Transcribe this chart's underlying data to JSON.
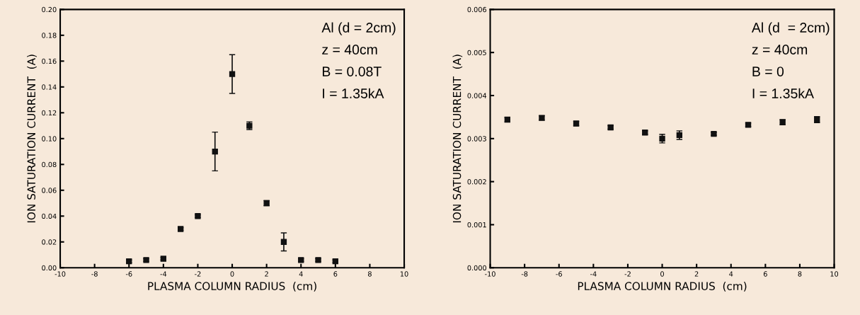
{
  "chart_data": [
    {
      "type": "scatter",
      "xlabel": "PLASMA COLUMN RADIUS  (cm)",
      "ylabel": "ION SATURATION CURRENT  (A)",
      "marker": "square",
      "x": [
        -6,
        -5,
        -4,
        -3,
        -2,
        -1,
        0,
        1,
        2,
        3,
        4,
        5,
        6
      ],
      "series": [
        {
          "color": "#111111",
          "values": [
            0.005,
            0.006,
            0.007,
            0.03,
            0.04,
            0.09,
            0.15,
            0.11,
            0.05,
            0.02,
            0.006,
            0.006,
            0.005
          ],
          "errors": [
            0.001,
            0.001,
            0.001,
            0.001,
            0.001,
            0.015,
            0.015,
            0.003,
            0.002,
            0.007,
            0.001,
            0.001,
            0.001
          ]
        }
      ],
      "xlim": [
        -10,
        10
      ],
      "xticks": [
        -10,
        -8,
        -6,
        -4,
        -2,
        0,
        2,
        4,
        6,
        8,
        10
      ],
      "ylim": [
        0,
        0.2
      ],
      "yticks": [
        {
          "value": 0,
          "label": "0.00"
        },
        0.02,
        0.04,
        0.06,
        0.08,
        {
          "value": 0.1,
          "label": "0.10"
        },
        0.12,
        0.14,
        0.16,
        0.18,
        {
          "value": 0.2,
          "label": "0.20"
        }
      ],
      "annotations": [
        "Al (d = 2cm)",
        "z = 40cm",
        "B = 0.08T",
        "I = 1.35kA"
      ]
    },
    {
      "type": "scatter",
      "xlabel": "PLASMA COLUMN RADIUS  (cm)",
      "ylabel": "ION SATURATION CURRENT  (A)",
      "marker": "square",
      "x": [
        -9,
        -7,
        -5,
        -3,
        -1,
        0,
        1,
        3,
        5,
        7,
        9
      ],
      "series": [
        {
          "color": "#111111",
          "values": [
            0.00344,
            0.00348,
            0.00335,
            0.00326,
            0.00314,
            0.003,
            0.00308,
            0.00311,
            0.00332,
            0.00338,
            0.00344
          ],
          "errors": [
            5e-05,
            5e-05,
            5e-05,
            4e-05,
            4e-05,
            0.0001,
            0.0001,
            3e-05,
            4e-05,
            6e-05,
            7e-05
          ]
        }
      ],
      "xlim": [
        -10,
        10
      ],
      "xticks": [
        -10,
        -8,
        -6,
        -4,
        -2,
        0,
        2,
        4,
        6,
        8,
        10
      ],
      "ylim": [
        0,
        0.006
      ],
      "yticks": [
        {
          "value": 0,
          "label": "0.000"
        },
        0.001,
        0.002,
        0.003,
        0.004,
        0.005,
        {
          "value": 0.006,
          "label": "0.006"
        }
      ],
      "annotations": [
        "Al (d  = 2cm)",
        "z = 40cm",
        "B = 0",
        "I = 1.35kA"
      ]
    }
  ]
}
